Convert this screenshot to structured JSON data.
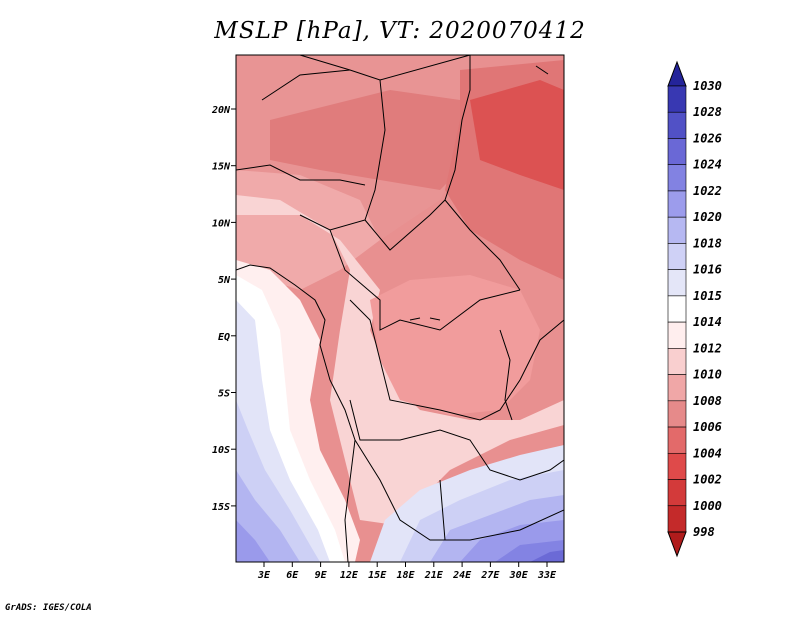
{
  "title": "MSLP [hPa], VT: 2020070412",
  "credit": "GrADS: IGES/COLA",
  "map": {
    "lat_labels": [
      "20N",
      "15N",
      "10N",
      "5N",
      "EQ",
      "5S",
      "10S",
      "15S"
    ],
    "lon_labels": [
      "3E",
      "6E",
      "9E",
      "12E",
      "15E",
      "18E",
      "21E",
      "24E",
      "27E",
      "30E",
      "33E"
    ]
  },
  "colorbar": {
    "levels": [
      "998",
      "1000",
      "1002",
      "1004",
      "1006",
      "1008",
      "1010",
      "1012",
      "1014",
      "1015",
      "1016",
      "1018",
      "1020",
      "1022",
      "1024",
      "1026",
      "1028",
      "1030"
    ],
    "colors": [
      "#b01c1c",
      "#c42a2a",
      "#d33a3a",
      "#df4a4a",
      "#e36a6a",
      "#e68a8a",
      "#f0a7a7",
      "#f9cfcf",
      "#ffeeee",
      "#ffffff",
      "#e4e6f8",
      "#cfd1f6",
      "#b6b8f2",
      "#9c9cec",
      "#8282e2",
      "#6a68d6",
      "#5151c6",
      "#3838b2",
      "#24249a"
    ]
  }
}
